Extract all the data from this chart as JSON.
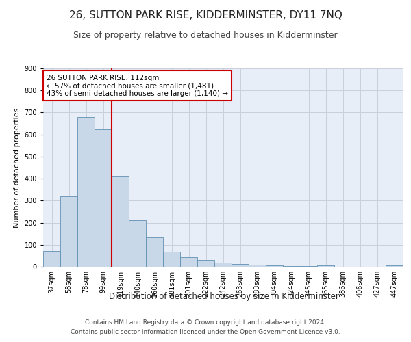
{
  "title": "26, SUTTON PARK RISE, KIDDERMINSTER, DY11 7NQ",
  "subtitle": "Size of property relative to detached houses in Kidderminster",
  "xlabel": "Distribution of detached houses by size in Kidderminster",
  "ylabel": "Number of detached properties",
  "categories": [
    "37sqm",
    "58sqm",
    "78sqm",
    "99sqm",
    "119sqm",
    "140sqm",
    "160sqm",
    "181sqm",
    "201sqm",
    "222sqm",
    "242sqm",
    "263sqm",
    "283sqm",
    "304sqm",
    "324sqm",
    "345sqm",
    "365sqm",
    "386sqm",
    "406sqm",
    "427sqm",
    "447sqm"
  ],
  "values": [
    70,
    320,
    680,
    625,
    410,
    210,
    135,
    67,
    45,
    32,
    20,
    13,
    10,
    5,
    4,
    3,
    7,
    1,
    1,
    1,
    5
  ],
  "bar_color": "#c8d8e8",
  "bar_edge_color": "#6090b0",
  "grid_color": "#c8d0dc",
  "background_color": "#e8eef8",
  "annotation_text": "26 SUTTON PARK RISE: 112sqm\n← 57% of detached houses are smaller (1,481)\n43% of semi-detached houses are larger (1,140) →",
  "annotation_box_color": "#ffffff",
  "annotation_box_edge": "#cc0000",
  "ylim": [
    0,
    900
  ],
  "yticks": [
    0,
    100,
    200,
    300,
    400,
    500,
    600,
    700,
    800,
    900
  ],
  "footer_line1": "Contains HM Land Registry data © Crown copyright and database right 2024.",
  "footer_line2": "Contains public sector information licensed under the Open Government Licence v3.0.",
  "title_fontsize": 11,
  "subtitle_fontsize": 9,
  "xlabel_fontsize": 8.5,
  "ylabel_fontsize": 8,
  "tick_fontsize": 7,
  "annot_fontsize": 7.5,
  "footer_fontsize": 6.5
}
